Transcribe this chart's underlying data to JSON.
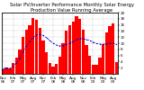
{
  "title": "Solar PV/Inverter Performance Monthly Solar Energy Production Value Running Average",
  "bar_values": [
    1.5,
    2.2,
    1.8,
    3.5,
    5.2,
    8.0,
    12.0,
    14.5,
    16.0,
    18.2,
    17.5,
    15.0,
    10.8,
    7.0,
    3.5,
    2.5,
    3.2,
    5.5,
    10.0,
    14.0,
    15.8,
    17.0,
    18.8,
    18.0,
    14.5,
    9.5,
    5.8,
    3.0,
    2.8,
    5.2,
    9.8,
    13.5,
    15.5,
    16.5,
    3.8
  ],
  "running_avg": [
    1.5,
    1.9,
    1.7,
    2.5,
    3.6,
    5.1,
    7.3,
    9.1,
    10.5,
    11.9,
    12.7,
    12.9,
    12.5,
    11.8,
    10.9,
    10.0,
    9.4,
    9.1,
    9.2,
    9.6,
    10.1,
    10.5,
    11.1,
    11.5,
    11.5,
    11.2,
    10.9,
    10.4,
    9.9,
    9.7,
    9.7,
    9.8,
    10.0,
    10.0,
    9.6
  ],
  "bar_color": "#ff0000",
  "avg_color": "#0000cc",
  "ylim": [
    0,
    20
  ],
  "ytick_vals": [
    2,
    4,
    6,
    8,
    10,
    12,
    14,
    16,
    18,
    20
  ],
  "background_color": "#ffffff",
  "grid_color": "#888888",
  "title_fontsize": 3.8,
  "tick_fontsize": 3.0,
  "xlabel_labels": [
    "Nov\n06",
    "",
    "",
    "Feb\n07",
    "",
    "",
    "May\n07",
    "",
    "",
    "Aug\n07",
    "",
    "",
    "Nov\n07",
    "",
    "",
    "Feb\n08",
    "",
    "",
    "May\n08",
    "",
    "",
    "Aug\n08",
    "",
    "",
    "Nov\n08",
    "",
    "",
    "Feb\n09",
    "",
    "",
    "May\n09",
    "",
    "",
    "Aug\n09",
    ""
  ],
  "right_ytick_labels": [
    "20",
    "18",
    "16",
    "14",
    "12",
    "10",
    "8",
    "6",
    "4",
    "2",
    "0"
  ]
}
